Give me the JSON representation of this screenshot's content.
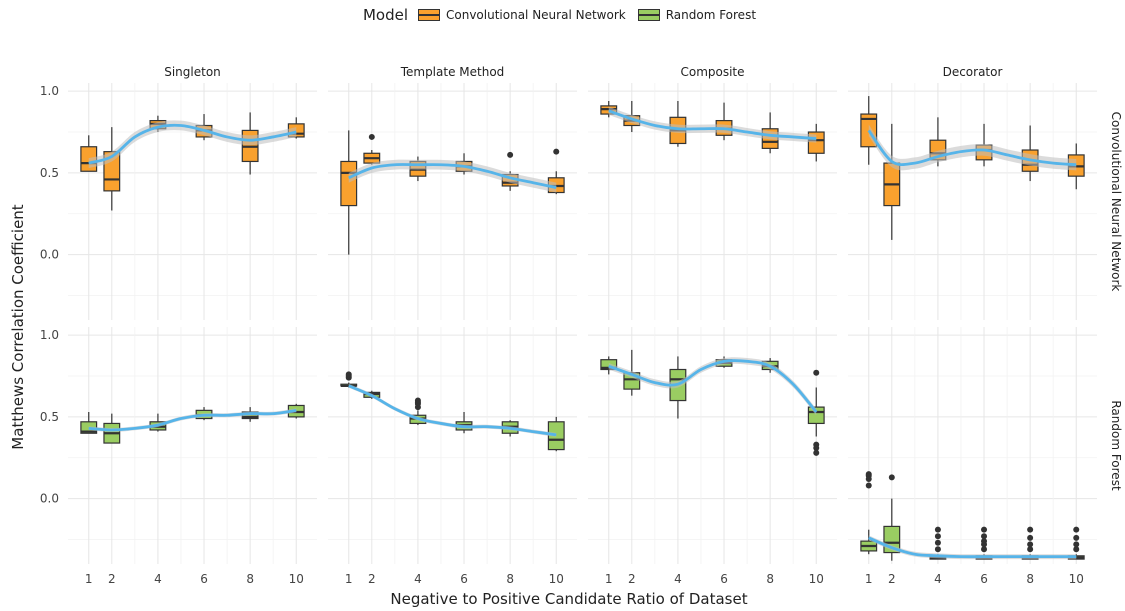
{
  "legend": {
    "title": "Model",
    "items": [
      {
        "label": "Convolutional Neural Network",
        "color": "#F9A12E"
      },
      {
        "label": "Random Forest",
        "color": "#9ACD62"
      }
    ]
  },
  "chart_data": {
    "type": "box",
    "xlabel": "Negative to Positive Candidate Ratio of Dataset",
    "ylabel": "Matthews Correlation Coefficient",
    "x_ticks": [
      1,
      2,
      4,
      6,
      8,
      10
    ],
    "y_ticks": [
      0.0,
      0.5,
      1.0
    ],
    "ylim": [
      -0.4,
      1.05
    ],
    "xlim": [
      0.1,
      10.9
    ],
    "columns": [
      "Singleton",
      "Template Method",
      "Composite",
      "Decorator"
    ],
    "rows": [
      "Convolutional Neural Network",
      "Random Forest"
    ],
    "colors": {
      "Convolutional Neural Network": "#F9A12E",
      "Random Forest": "#9ACD62",
      "smooth": "#56B4E9",
      "band": "#BDBDBD"
    },
    "panels": [
      {
        "row": "Convolutional Neural Network",
        "column": "Singleton",
        "boxes": [
          {
            "x": 1,
            "min": 0.51,
            "q1": 0.51,
            "median": 0.56,
            "q3": 0.66,
            "max": 0.73,
            "outliers": []
          },
          {
            "x": 2,
            "min": 0.27,
            "q1": 0.39,
            "median": 0.46,
            "q3": 0.63,
            "max": 0.78,
            "outliers": []
          },
          {
            "x": 4,
            "min": 0.75,
            "q1": 0.77,
            "median": 0.8,
            "q3": 0.82,
            "max": 0.85,
            "outliers": []
          },
          {
            "x": 6,
            "min": 0.7,
            "q1": 0.72,
            "median": 0.76,
            "q3": 0.79,
            "max": 0.86,
            "outliers": []
          },
          {
            "x": 8,
            "min": 0.49,
            "q1": 0.57,
            "median": 0.66,
            "q3": 0.76,
            "max": 0.87,
            "outliers": []
          },
          {
            "x": 10,
            "min": 0.71,
            "q1": 0.72,
            "median": 0.74,
            "q3": 0.8,
            "max": 0.84,
            "outliers": []
          }
        ],
        "smooth": [
          [
            1,
            0.56
          ],
          [
            2,
            0.6
          ],
          [
            3,
            0.72
          ],
          [
            4,
            0.78
          ],
          [
            5,
            0.79
          ],
          [
            6,
            0.76
          ],
          [
            7,
            0.72
          ],
          [
            8,
            0.7
          ],
          [
            9,
            0.72
          ],
          [
            10,
            0.75
          ]
        ],
        "band_width": 0.03
      },
      {
        "row": "Convolutional Neural Network",
        "column": "Template Method",
        "boxes": [
          {
            "x": 1,
            "min": 0.0,
            "q1": 0.3,
            "median": 0.5,
            "q3": 0.57,
            "max": 0.76,
            "outliers": []
          },
          {
            "x": 2,
            "min": 0.55,
            "q1": 0.56,
            "median": 0.59,
            "q3": 0.62,
            "max": 0.64,
            "outliers": [
              0.72
            ]
          },
          {
            "x": 4,
            "min": 0.45,
            "q1": 0.48,
            "median": 0.52,
            "q3": 0.57,
            "max": 0.6,
            "outliers": []
          },
          {
            "x": 6,
            "min": 0.49,
            "q1": 0.51,
            "median": 0.54,
            "q3": 0.57,
            "max": 0.62,
            "outliers": []
          },
          {
            "x": 8,
            "min": 0.39,
            "q1": 0.42,
            "median": 0.44,
            "q3": 0.49,
            "max": 0.51,
            "outliers": [
              0.61
            ]
          },
          {
            "x": 10,
            "min": 0.37,
            "q1": 0.38,
            "median": 0.42,
            "q3": 0.47,
            "max": 0.51,
            "outliers": [
              0.63
            ]
          }
        ],
        "smooth": [
          [
            1,
            0.47
          ],
          [
            2,
            0.53
          ],
          [
            3,
            0.55
          ],
          [
            4,
            0.55
          ],
          [
            5,
            0.55
          ],
          [
            6,
            0.54
          ],
          [
            7,
            0.51
          ],
          [
            8,
            0.47
          ],
          [
            9,
            0.44
          ],
          [
            10,
            0.41
          ]
        ],
        "band_width": 0.03
      },
      {
        "row": "Convolutional Neural Network",
        "column": "Composite",
        "boxes": [
          {
            "x": 1,
            "min": 0.84,
            "q1": 0.86,
            "median": 0.89,
            "q3": 0.91,
            "max": 0.94,
            "outliers": []
          },
          {
            "x": 2,
            "min": 0.75,
            "q1": 0.79,
            "median": 0.82,
            "q3": 0.85,
            "max": 0.94,
            "outliers": []
          },
          {
            "x": 4,
            "min": 0.66,
            "q1": 0.68,
            "median": 0.76,
            "q3": 0.84,
            "max": 0.94,
            "outliers": []
          },
          {
            "x": 6,
            "min": 0.7,
            "q1": 0.73,
            "median": 0.77,
            "q3": 0.82,
            "max": 0.93,
            "outliers": []
          },
          {
            "x": 8,
            "min": 0.62,
            "q1": 0.65,
            "median": 0.69,
            "q3": 0.77,
            "max": 0.87,
            "outliers": []
          },
          {
            "x": 10,
            "min": 0.57,
            "q1": 0.62,
            "median": 0.7,
            "q3": 0.75,
            "max": 0.8,
            "outliers": []
          }
        ],
        "smooth": [
          [
            1,
            0.88
          ],
          [
            2,
            0.83
          ],
          [
            3,
            0.79
          ],
          [
            4,
            0.77
          ],
          [
            5,
            0.77
          ],
          [
            6,
            0.77
          ],
          [
            7,
            0.75
          ],
          [
            8,
            0.73
          ],
          [
            9,
            0.72
          ],
          [
            10,
            0.71
          ]
        ],
        "band_width": 0.025
      },
      {
        "row": "Convolutional Neural Network",
        "column": "Decorator",
        "boxes": [
          {
            "x": 1,
            "min": 0.55,
            "q1": 0.66,
            "median": 0.83,
            "q3": 0.86,
            "max": 0.97,
            "outliers": []
          },
          {
            "x": 2,
            "min": 0.09,
            "q1": 0.3,
            "median": 0.43,
            "q3": 0.56,
            "max": 0.8,
            "outliers": []
          },
          {
            "x": 4,
            "min": 0.54,
            "q1": 0.58,
            "median": 0.62,
            "q3": 0.7,
            "max": 0.84,
            "outliers": []
          },
          {
            "x": 6,
            "min": 0.54,
            "q1": 0.58,
            "median": 0.64,
            "q3": 0.67,
            "max": 0.8,
            "outliers": []
          },
          {
            "x": 8,
            "min": 0.45,
            "q1": 0.51,
            "median": 0.55,
            "q3": 0.64,
            "max": 0.79,
            "outliers": []
          },
          {
            "x": 10,
            "min": 0.4,
            "q1": 0.48,
            "median": 0.54,
            "q3": 0.61,
            "max": 0.68,
            "outliers": []
          }
        ],
        "smooth": [
          [
            1,
            0.76
          ],
          [
            2,
            0.57
          ],
          [
            3,
            0.56
          ],
          [
            4,
            0.6
          ],
          [
            5,
            0.63
          ],
          [
            6,
            0.64
          ],
          [
            7,
            0.61
          ],
          [
            8,
            0.58
          ],
          [
            9,
            0.56
          ],
          [
            10,
            0.55
          ]
        ],
        "band_width": 0.035
      },
      {
        "row": "Random Forest",
        "column": "Singleton",
        "boxes": [
          {
            "x": 1,
            "min": 0.4,
            "q1": 0.4,
            "median": 0.41,
            "q3": 0.47,
            "max": 0.53,
            "outliers": []
          },
          {
            "x": 2,
            "min": 0.34,
            "q1": 0.34,
            "median": 0.4,
            "q3": 0.46,
            "max": 0.52,
            "outliers": []
          },
          {
            "x": 4,
            "min": 0.41,
            "q1": 0.42,
            "median": 0.44,
            "q3": 0.47,
            "max": 0.52,
            "outliers": []
          },
          {
            "x": 6,
            "min": 0.48,
            "q1": 0.49,
            "median": 0.51,
            "q3": 0.54,
            "max": 0.56,
            "outliers": []
          },
          {
            "x": 8,
            "min": 0.47,
            "q1": 0.49,
            "median": 0.5,
            "q3": 0.53,
            "max": 0.56,
            "outliers": []
          },
          {
            "x": 10,
            "min": 0.49,
            "q1": 0.5,
            "median": 0.53,
            "q3": 0.57,
            "max": 0.58,
            "outliers": []
          }
        ],
        "smooth": [
          [
            1,
            0.43
          ],
          [
            2,
            0.42
          ],
          [
            3,
            0.43
          ],
          [
            4,
            0.45
          ],
          [
            5,
            0.49
          ],
          [
            6,
            0.51
          ],
          [
            7,
            0.51
          ],
          [
            8,
            0.52
          ],
          [
            9,
            0.52
          ],
          [
            10,
            0.54
          ]
        ],
        "band_width": 0.012
      },
      {
        "row": "Random Forest",
        "column": "Template Method",
        "boxes": [
          {
            "x": 1,
            "min": 0.68,
            "q1": 0.69,
            "median": 0.69,
            "q3": 0.7,
            "max": 0.71,
            "outliers": [
              0.74,
              0.75,
              0.76
            ]
          },
          {
            "x": 2,
            "min": 0.61,
            "q1": 0.62,
            "median": 0.64,
            "q3": 0.65,
            "max": 0.66,
            "outliers": []
          },
          {
            "x": 4,
            "min": 0.45,
            "q1": 0.46,
            "median": 0.49,
            "q3": 0.51,
            "max": 0.54,
            "outliers": [
              0.56,
              0.58,
              0.59,
              0.6
            ]
          },
          {
            "x": 6,
            "min": 0.4,
            "q1": 0.42,
            "median": 0.45,
            "q3": 0.47,
            "max": 0.53,
            "outliers": []
          },
          {
            "x": 8,
            "min": 0.38,
            "q1": 0.4,
            "median": 0.44,
            "q3": 0.47,
            "max": 0.48,
            "outliers": []
          },
          {
            "x": 10,
            "min": 0.29,
            "q1": 0.3,
            "median": 0.36,
            "q3": 0.47,
            "max": 0.5,
            "outliers": []
          }
        ],
        "smooth": [
          [
            1,
            0.69
          ],
          [
            2,
            0.63
          ],
          [
            3,
            0.55
          ],
          [
            4,
            0.49
          ],
          [
            5,
            0.46
          ],
          [
            6,
            0.44
          ],
          [
            7,
            0.44
          ],
          [
            8,
            0.43
          ],
          [
            9,
            0.41
          ],
          [
            10,
            0.39
          ]
        ],
        "band_width": 0.012
      },
      {
        "row": "Random Forest",
        "column": "Composite",
        "boxes": [
          {
            "x": 1,
            "min": 0.76,
            "q1": 0.79,
            "median": 0.8,
            "q3": 0.85,
            "max": 0.87,
            "outliers": []
          },
          {
            "x": 2,
            "min": 0.63,
            "q1": 0.67,
            "median": 0.73,
            "q3": 0.77,
            "max": 0.91,
            "outliers": []
          },
          {
            "x": 4,
            "min": 0.49,
            "q1": 0.6,
            "median": 0.73,
            "q3": 0.79,
            "max": 0.87,
            "outliers": []
          },
          {
            "x": 6,
            "min": 0.8,
            "q1": 0.81,
            "median": 0.83,
            "q3": 0.85,
            "max": 0.87,
            "outliers": []
          },
          {
            "x": 8,
            "min": 0.77,
            "q1": 0.79,
            "median": 0.81,
            "q3": 0.84,
            "max": 0.86,
            "outliers": []
          },
          {
            "x": 10,
            "min": 0.38,
            "q1": 0.46,
            "median": 0.53,
            "q3": 0.56,
            "max": 0.68,
            "outliers": [
              0.77,
              0.33,
              0.31,
              0.28
            ]
          }
        ],
        "smooth": [
          [
            1,
            0.81
          ],
          [
            2,
            0.76
          ],
          [
            3,
            0.71
          ],
          [
            4,
            0.7
          ],
          [
            5,
            0.79
          ],
          [
            6,
            0.84
          ],
          [
            7,
            0.84
          ],
          [
            8,
            0.81
          ],
          [
            9,
            0.7
          ],
          [
            10,
            0.53
          ]
        ],
        "band_width": 0.02
      },
      {
        "row": "Random Forest",
        "column": "Decorator",
        "boxes": [
          {
            "x": 1,
            "min": -0.34,
            "q1": -0.32,
            "median": -0.29,
            "q3": -0.26,
            "max": -0.19,
            "outliers": [
              0.15,
              0.14,
              0.12,
              0.08
            ]
          },
          {
            "x": 2,
            "min": -0.38,
            "q1": -0.33,
            "median": -0.27,
            "q3": -0.17,
            "max": 0.0,
            "outliers": [
              0.13
            ]
          },
          {
            "x": 4,
            "min": -0.37,
            "q1": -0.37,
            "median": -0.36,
            "q3": -0.35,
            "max": -0.34,
            "outliers": [
              -0.19,
              -0.23,
              -0.27,
              -0.31
            ]
          },
          {
            "x": 6,
            "min": -0.37,
            "q1": -0.37,
            "median": -0.36,
            "q3": -0.35,
            "max": -0.34,
            "outliers": [
              -0.19,
              -0.23,
              -0.26,
              -0.28,
              -0.31
            ]
          },
          {
            "x": 8,
            "min": -0.37,
            "q1": -0.37,
            "median": -0.36,
            "q3": -0.35,
            "max": -0.34,
            "outliers": [
              -0.19,
              -0.24,
              -0.28,
              -0.31
            ]
          },
          {
            "x": 10,
            "min": -0.37,
            "q1": -0.37,
            "median": -0.36,
            "q3": -0.35,
            "max": -0.34,
            "outliers": [
              -0.19,
              -0.24,
              -0.28,
              -0.31
            ]
          }
        ],
        "smooth": [
          [
            1,
            -0.24
          ],
          [
            2,
            -0.3
          ],
          [
            3,
            -0.34
          ],
          [
            4,
            -0.35
          ],
          [
            5,
            -0.355
          ],
          [
            6,
            -0.355
          ],
          [
            7,
            -0.355
          ],
          [
            8,
            -0.355
          ],
          [
            9,
            -0.355
          ],
          [
            10,
            -0.355
          ]
        ],
        "band_width": 0.015
      }
    ]
  }
}
